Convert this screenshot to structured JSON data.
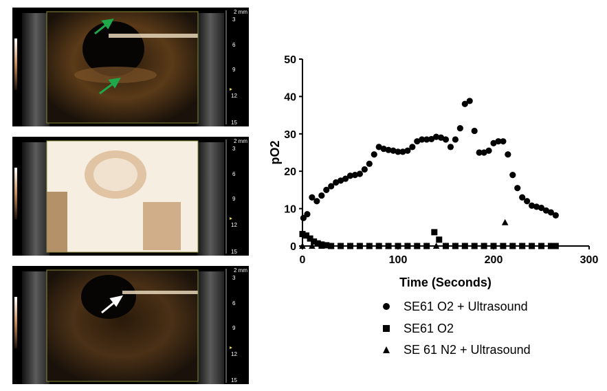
{
  "scale_unit": "2 mm",
  "depth_ticks": [
    "3",
    "6",
    "9",
    "12",
    "15"
  ],
  "panels": [
    {
      "name": "ultrasound-panel-1",
      "annotation": "green arrows"
    },
    {
      "name": "ultrasound-panel-2",
      "annotation": "none"
    },
    {
      "name": "ultrasound-panel-3",
      "annotation": "white arrow"
    }
  ],
  "colors": {
    "arrow_green": "#1fa84a",
    "arrow_white": "#ffffff",
    "roi_box": "#8a8a3a",
    "contrast_tint": "#c58a42"
  },
  "chart_data": {
    "type": "scatter",
    "xlabel": "Time (Seconds)",
    "ylabel": "pO2",
    "xlim": [
      0,
      300
    ],
    "ylim": [
      0,
      50
    ],
    "xticks": [
      "0",
      "100",
      "200",
      "300"
    ],
    "yticks": [
      "0",
      "10",
      "20",
      "30",
      "40",
      "50"
    ],
    "legend_position": "bottom",
    "series": [
      {
        "name": "SE61 O2 + Ultrasound",
        "marker": "circle",
        "points": [
          [
            1,
            7.5
          ],
          [
            5,
            8.5
          ],
          [
            10,
            13
          ],
          [
            15,
            12
          ],
          [
            20,
            13.5
          ],
          [
            25,
            15
          ],
          [
            30,
            16
          ],
          [
            35,
            17
          ],
          [
            40,
            17.5
          ],
          [
            45,
            18
          ],
          [
            50,
            18.8
          ],
          [
            55,
            19
          ],
          [
            60,
            19.3
          ],
          [
            65,
            20.5
          ],
          [
            70,
            22
          ],
          [
            75,
            24.5
          ],
          [
            80,
            26.5
          ],
          [
            85,
            26
          ],
          [
            90,
            25.7
          ],
          [
            95,
            25.5
          ],
          [
            100,
            25.2
          ],
          [
            105,
            25.2
          ],
          [
            110,
            25.5
          ],
          [
            115,
            26.5
          ],
          [
            120,
            28
          ],
          [
            125,
            28.5
          ],
          [
            130,
            28.5
          ],
          [
            135,
            28.6
          ],
          [
            140,
            29.2
          ],
          [
            145,
            29
          ],
          [
            150,
            28.5
          ],
          [
            155,
            26.5
          ],
          [
            160,
            28.5
          ],
          [
            165,
            31.5
          ],
          [
            170,
            38
          ],
          [
            175,
            38.8
          ],
          [
            180,
            30.8
          ],
          [
            185,
            25
          ],
          [
            190,
            25
          ],
          [
            195,
            25.5
          ],
          [
            200,
            27.5
          ],
          [
            205,
            28
          ],
          [
            210,
            28
          ],
          [
            215,
            24.5
          ],
          [
            220,
            19
          ],
          [
            225,
            15.5
          ],
          [
            230,
            13
          ],
          [
            235,
            12
          ],
          [
            240,
            10.8
          ],
          [
            245,
            10.5
          ],
          [
            250,
            10.2
          ],
          [
            255,
            9.5
          ],
          [
            260,
            9
          ],
          [
            265,
            8.2
          ]
        ]
      },
      {
        "name": "SE61 O2",
        "marker": "square",
        "points": [
          [
            0,
            3.2
          ],
          [
            4,
            2.8
          ],
          [
            8,
            2
          ],
          [
            12,
            1.2
          ],
          [
            16,
            0.7
          ],
          [
            20,
            0.4
          ],
          [
            25,
            0.2
          ],
          [
            30,
            0
          ],
          [
            40,
            0
          ],
          [
            50,
            0
          ],
          [
            60,
            0
          ],
          [
            70,
            0
          ],
          [
            80,
            0
          ],
          [
            90,
            0
          ],
          [
            100,
            0
          ],
          [
            110,
            0
          ],
          [
            120,
            0
          ],
          [
            130,
            0
          ],
          [
            138,
            3.7
          ],
          [
            143,
            1.7
          ],
          [
            150,
            0
          ],
          [
            160,
            0
          ],
          [
            170,
            0
          ],
          [
            180,
            0
          ],
          [
            190,
            0
          ],
          [
            200,
            0
          ],
          [
            210,
            0
          ],
          [
            220,
            0
          ],
          [
            230,
            0
          ],
          [
            240,
            0
          ],
          [
            250,
            0
          ],
          [
            260,
            0
          ],
          [
            265,
            0
          ]
        ]
      },
      {
        "name": "SE 61 N2 + Ultrasound",
        "marker": "triangle",
        "points": [
          [
            0,
            0
          ],
          [
            10,
            0
          ],
          [
            20,
            0
          ],
          [
            30,
            0
          ],
          [
            40,
            0
          ],
          [
            50,
            0
          ],
          [
            60,
            0
          ],
          [
            70,
            0
          ],
          [
            80,
            0
          ],
          [
            90,
            0
          ],
          [
            100,
            0
          ],
          [
            110,
            0
          ],
          [
            120,
            0
          ],
          [
            130,
            0
          ],
          [
            140,
            0
          ],
          [
            150,
            0
          ],
          [
            160,
            0
          ],
          [
            170,
            0
          ],
          [
            180,
            0
          ],
          [
            190,
            0
          ],
          [
            200,
            0
          ],
          [
            212,
            6.3
          ],
          [
            220,
            0
          ],
          [
            230,
            0
          ],
          [
            240,
            0
          ],
          [
            250,
            0
          ],
          [
            260,
            0
          ]
        ]
      }
    ]
  }
}
